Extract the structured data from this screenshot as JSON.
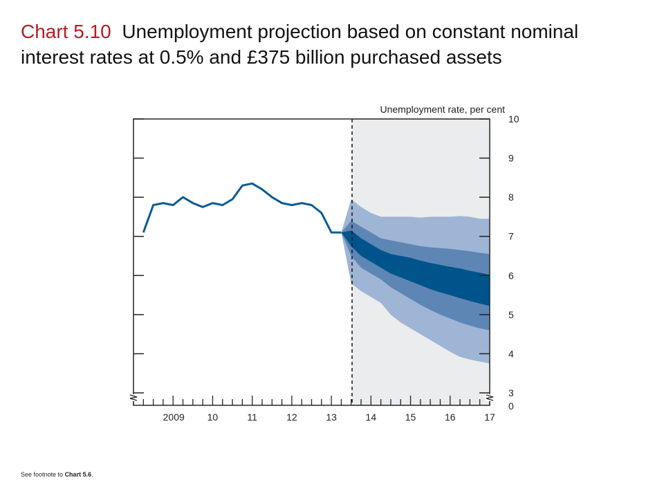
{
  "slide": {
    "title_number": "Chart 5.10",
    "title_text": "Unemployment projection based on constant nominal interest rates at 0.5% and £375 billion purchased assets",
    "footnote_prefix": "See footnote to ",
    "footnote_ref": "Chart 5.6",
    "footnote_suffix": "."
  },
  "chart_data": {
    "type": "area",
    "title": "Unemployment rate, per cent",
    "xlabel": "",
    "ylabel": "Unemployment rate, per cent",
    "ylim": [
      3,
      10
    ],
    "y_ticks": [
      "10",
      "9",
      "8",
      "7",
      "6",
      "5",
      "4",
      "3"
    ],
    "y_break_label": "0",
    "x_tick_labels": [
      {
        "label": "2009",
        "x": 2009.0
      },
      {
        "label": "10",
        "x": 2010.0
      },
      {
        "label": "11",
        "x": 2011.0
      },
      {
        "label": "12",
        "x": 2012.0
      },
      {
        "label": "13",
        "x": 2013.0
      },
      {
        "label": "14",
        "x": 2014.0
      },
      {
        "label": "15",
        "x": 2015.0
      },
      {
        "label": "16",
        "x": 2016.0
      },
      {
        "label": "17",
        "x": 2017.0
      }
    ],
    "xlim": [
      2008.0,
      2017.0
    ],
    "projection_start": 2013.25,
    "grid": false,
    "colors": {
      "line": "#0b5a94",
      "band_outer": "#9fb5d5",
      "band_middle": "#5e86b4",
      "band_inner": "#00548c",
      "shade": "#ebeced",
      "axis": "#222222"
    },
    "history": {
      "name": "",
      "x": [
        2008.25,
        2008.5,
        2008.75,
        2009.0,
        2009.25,
        2009.5,
        2009.75,
        2010.0,
        2010.25,
        2010.5,
        2010.75,
        2011.0,
        2011.25,
        2011.5,
        2011.75,
        2012.0,
        2012.25,
        2012.5,
        2012.75,
        2013.0,
        2013.25
      ],
      "values": [
        7.1,
        7.8,
        7.85,
        7.8,
        8.0,
        7.85,
        7.75,
        7.85,
        7.8,
        7.95,
        8.3,
        8.35,
        8.2,
        8.0,
        7.85,
        7.8,
        7.85,
        7.8,
        7.6,
        7.1,
        7.1
      ]
    },
    "fan": {
      "x": [
        2013.25,
        2013.5,
        2013.75,
        2014.0,
        2014.25,
        2014.5,
        2014.75,
        2015.0,
        2015.25,
        2015.5,
        2015.75,
        2016.0,
        2016.25,
        2016.5,
        2016.75,
        2017.0
      ],
      "outer_upper": [
        7.1,
        7.95,
        7.75,
        7.6,
        7.5,
        7.5,
        7.5,
        7.5,
        7.48,
        7.5,
        7.5,
        7.5,
        7.52,
        7.5,
        7.45,
        7.45
      ],
      "middle_upper": [
        7.1,
        7.4,
        7.25,
        7.1,
        6.95,
        6.9,
        6.85,
        6.8,
        6.75,
        6.72,
        6.7,
        6.68,
        6.65,
        6.62,
        6.58,
        6.55
      ],
      "inner_upper": [
        7.1,
        7.15,
        6.95,
        6.8,
        6.65,
        6.55,
        6.5,
        6.45,
        6.38,
        6.32,
        6.27,
        6.22,
        6.18,
        6.12,
        6.07,
        6.02
      ],
      "inner_lower": [
        7.1,
        6.75,
        6.5,
        6.35,
        6.2,
        6.05,
        5.95,
        5.85,
        5.75,
        5.65,
        5.57,
        5.5,
        5.42,
        5.35,
        5.28,
        5.22
      ],
      "middle_lower": [
        7.1,
        6.5,
        6.2,
        6.05,
        5.9,
        5.7,
        5.55,
        5.4,
        5.25,
        5.12,
        5.0,
        4.9,
        4.8,
        4.72,
        4.65,
        4.6
      ],
      "outer_lower": [
        7.1,
        5.8,
        5.6,
        5.45,
        5.3,
        5.0,
        4.8,
        4.65,
        4.5,
        4.35,
        4.2,
        4.05,
        3.92,
        3.85,
        3.8,
        3.75
      ]
    }
  }
}
